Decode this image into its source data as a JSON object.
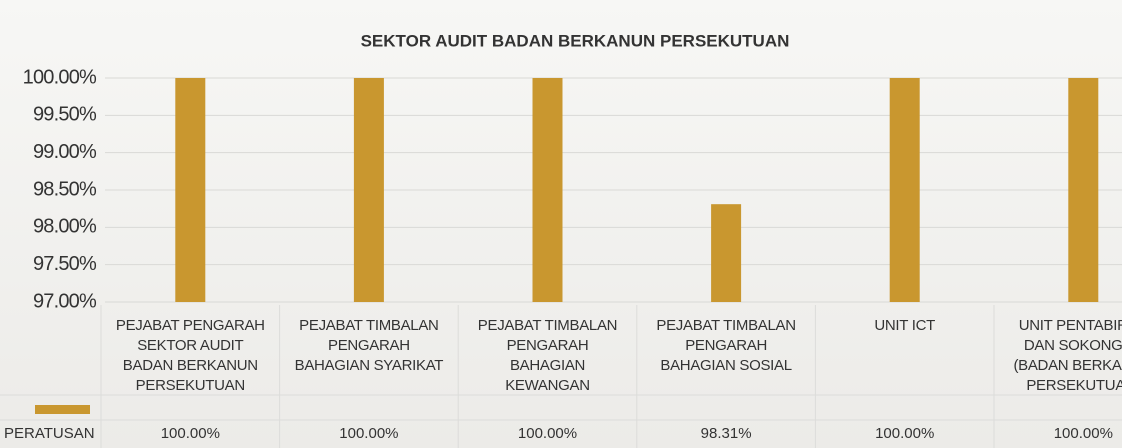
{
  "chart_data": {
    "type": "bar",
    "title": "SEKTOR AUDIT BADAN BERKANUN PERSEKUTUAN",
    "categories": [
      "PEJABAT PENGARAH SEKTOR AUDIT BADAN BERKANUN PERSEKUTUAN",
      "PEJABAT TIMBALAN PENGARAH BAHAGIAN SYARIKAT",
      "PEJABAT TIMBALAN PENGARAH BAHAGIAN KEWANGAN",
      "PEJABAT TIMBALAN PENGARAH BAHAGIAN SOSIAL",
      "UNIT ICT",
      "UNIT PENTABIRAN DAN SOKONGAN (BADAN BERKANUN PERSEKUTUAN)"
    ],
    "series": [
      {
        "name": "PERATUSAN",
        "color": "#c9972f",
        "values": [
          100,
          100,
          100,
          98.31,
          100,
          100
        ],
        "value_labels": [
          "100.00%",
          "100.00%",
          "100.00%",
          "98.31%",
          "100.00%",
          "100.00%"
        ]
      }
    ],
    "ylim": [
      97,
      100
    ],
    "yticks": [
      {
        "value": 97,
        "label": "97.00%"
      },
      {
        "value": 97.5,
        "label": "97.50%"
      },
      {
        "value": 98,
        "label": "98.00%"
      },
      {
        "value": 98.5,
        "label": "98.50%"
      },
      {
        "value": 99,
        "label": "99.00%"
      },
      {
        "value": 99.5,
        "label": "99.50%"
      },
      {
        "value": 100,
        "label": "100.00%"
      }
    ],
    "grid": true
  }
}
